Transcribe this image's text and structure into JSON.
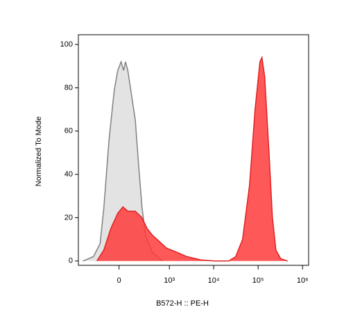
{
  "chart_data": {
    "type": "area",
    "x_label": "B572-H :: PE-H",
    "y_label": "Normalized To Mode",
    "xscale": "biexponential",
    "xlim": [
      -600,
      1370000
    ],
    "ylim": [
      -2,
      104.5
    ],
    "xticks": [
      0,
      {
        "value": 1000,
        "label": "10³"
      },
      {
        "value": 10000,
        "label": "10⁴"
      },
      {
        "value": 100000,
        "label": "10⁵"
      },
      {
        "value": 1000000,
        "label": "10⁶"
      }
    ],
    "yticks": [
      0,
      20,
      40,
      60,
      80,
      100
    ],
    "series": [
      {
        "color": "#808080",
        "fill": "#e3e3e3",
        "x": [
          -470,
          -260,
          -170,
          -130,
          -80,
          -37,
          -10,
          16,
          35,
          50,
          70,
          140,
          176,
          220,
          272,
          400,
          700
        ],
        "values": [
          0,
          2,
          8,
          24,
          56,
          79,
          88,
          92,
          88,
          92,
          88,
          65,
          45,
          25,
          12,
          4,
          0
        ]
      },
      {
        "color": "#e02020",
        "fill": "#ff3b3b",
        "x": [
          -210,
          -130,
          -65,
          -10,
          30,
          70,
          140,
          220,
          300,
          400,
          590,
          850,
          1500,
          2500,
          5200,
          10600,
          21800,
          31200,
          44700,
          64100,
          85400,
          110000,
          122000,
          141000,
          176000,
          210000,
          252000,
          324000,
          463000
        ],
        "values": [
          0,
          5,
          15,
          22,
          25,
          23,
          23,
          20,
          15,
          12,
          9,
          6,
          4,
          2,
          0.5,
          0,
          0,
          2,
          10,
          35,
          70,
          92,
          94,
          85,
          50,
          20,
          5,
          1,
          0
        ]
      }
    ]
  }
}
